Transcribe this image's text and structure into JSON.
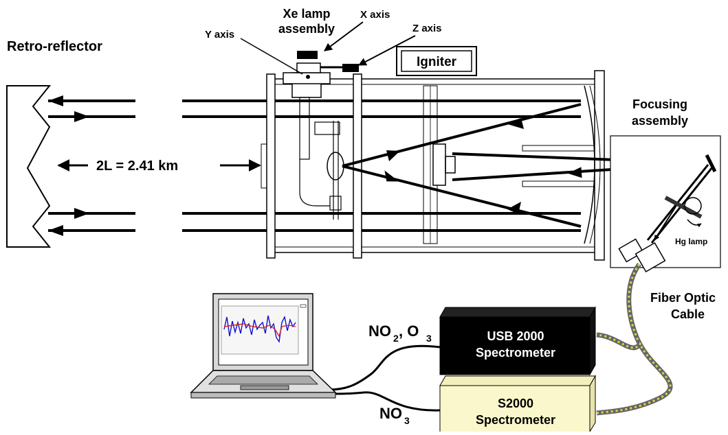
{
  "labels": {
    "retro_reflector": "Retro-reflector",
    "xe_lamp_line1": "Xe lamp",
    "xe_lamp_line2": "assembly",
    "x_axis": "X axis",
    "y_axis": "Y axis",
    "z_axis": "Z axis",
    "igniter": "Igniter",
    "focusing_line1": "Focusing",
    "focusing_line2": "assembly",
    "path_length": "2L = 2.41 km",
    "hg_lamp": "Hg lamp",
    "fiber_line1": "Fiber Optic",
    "fiber_line2": "Cable",
    "usb_line1": "USB 2000",
    "usb_line2": "Spectrometer",
    "s2000_line1": "S2000",
    "s2000_line2": "Spectrometer",
    "no2_o3_a": "NO",
    "no2_o3_sub1": "2",
    "no2_o3_b": ", O",
    "no2_o3_sub2": "3",
    "no3": "NO",
    "no3_sub": "3"
  },
  "colors": {
    "usb_box": "#000000",
    "s2000_box": "#fbf7cc",
    "fiber": "#d9d84a",
    "trace_blue": "#1010cc",
    "trace_red": "#dd2222"
  }
}
